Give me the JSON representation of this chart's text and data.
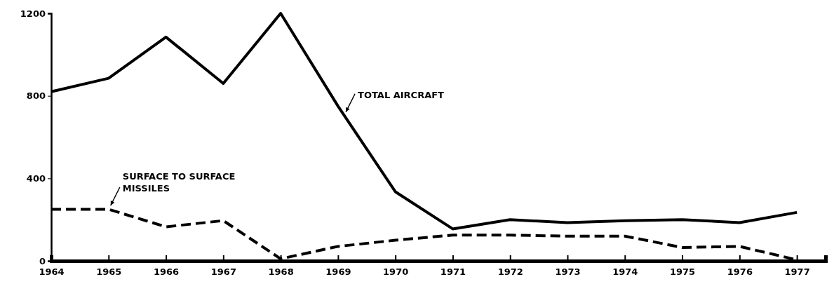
{
  "chart_data": {
    "type": "line",
    "x": [
      1964,
      1965,
      1966,
      1967,
      1968,
      1969,
      1970,
      1971,
      1972,
      1973,
      1974,
      1975,
      1976,
      1977
    ],
    "series": [
      {
        "color": "#000000",
        "line_style": "solid",
        "values": [
          820,
          885,
          1085,
          860,
          1200,
          750,
          335,
          155,
          200,
          185,
          195,
          200,
          185,
          235
        ]
      },
      {
        "color": "#000000",
        "line_style": "dashed",
        "values": [
          250,
          250,
          165,
          195,
          10,
          70,
          100,
          125,
          125,
          120,
          120,
          65,
          70,
          5
        ]
      }
    ],
    "xlim": [
      1964,
      1977.5
    ],
    "xticks": [
      1964,
      1965,
      1966,
      1967,
      1968,
      1969,
      1970,
      1971,
      1972,
      1973,
      1974,
      1975,
      1976,
      1977
    ],
    "ylim": [
      0,
      1200
    ],
    "yticks": [
      0,
      400,
      800,
      1200
    ],
    "grid": false,
    "marker": "none",
    "annotations": [
      {
        "text": "TOTAL AIRCRAFT",
        "x": 1969.1,
        "y": 708
      },
      {
        "text": "SURFACE TO SURFACE\nMISSILES",
        "x": 1965,
        "y": 255
      }
    ]
  }
}
